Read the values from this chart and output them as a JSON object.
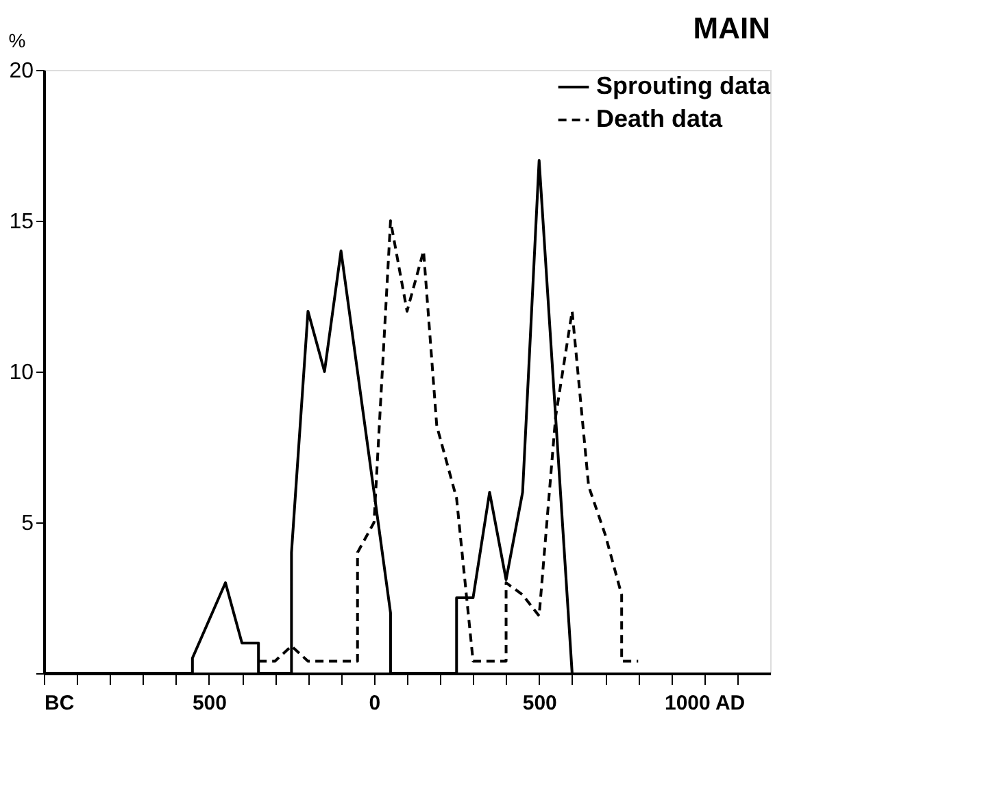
{
  "chart_data": {
    "type": "line",
    "title": "MAIN",
    "ylabel": "%",
    "xlim": [
      -1000,
      1200
    ],
    "xticks": [
      {
        "value": -1000,
        "label": "BC"
      },
      {
        "value": -900,
        "label": null
      },
      {
        "value": -800,
        "label": null
      },
      {
        "value": -700,
        "label": null
      },
      {
        "value": -600,
        "label": null
      },
      {
        "value": -500,
        "label": "500"
      },
      {
        "value": -400,
        "label": null
      },
      {
        "value": -300,
        "label": null
      },
      {
        "value": -200,
        "label": null
      },
      {
        "value": -100,
        "label": null
      },
      0,
      {
        "value": 100,
        "label": null
      },
      {
        "value": 200,
        "label": null
      },
      {
        "value": 300,
        "label": null
      },
      {
        "value": 400,
        "label": null
      },
      {
        "value": 500,
        "label": "500"
      },
      {
        "value": 600,
        "label": null
      },
      {
        "value": 700,
        "label": null
      },
      {
        "value": 800,
        "label": null
      },
      {
        "value": 900,
        "label": null
      },
      {
        "value": 1000,
        "label": "1000 AD"
      },
      {
        "value": 1100,
        "label": null
      }
    ],
    "ylim": [
      0,
      20
    ],
    "yticks": [
      {
        "value": 0,
        "label": null
      },
      5,
      10,
      15,
      20
    ],
    "grid": false,
    "legend": "top right",
    "marker": "none",
    "series": [
      {
        "name": "Sprouting data",
        "color": "#000000",
        "line_style": "solid",
        "x": [
          -1000,
          -550,
          -550,
          -450,
          -400,
          -350,
          -350,
          -250,
          -250,
          -250,
          -200,
          -150,
          -100,
          0,
          50,
          50,
          250,
          250,
          300,
          350,
          400,
          450,
          500,
          600
        ],
        "values": [
          0,
          0,
          0.5,
          3,
          1,
          1,
          0,
          0,
          4,
          4,
          12,
          10,
          14,
          6,
          2,
          0,
          0,
          2.5,
          2.5,
          6,
          3.1,
          6,
          17,
          0
        ]
      },
      {
        "name": "Death data",
        "color": "#000000",
        "line_style": "dashed",
        "x": [
          -350,
          -300,
          -250,
          -200,
          -50,
          -50,
          0,
          50,
          100,
          150,
          190,
          250,
          300,
          400,
          400,
          450,
          500,
          550,
          600,
          650,
          700,
          750,
          750,
          800
        ],
        "values": [
          0.4,
          0.4,
          0.9,
          0.4,
          0.4,
          4,
          5,
          15,
          12,
          14,
          8.2,
          5.8,
          0.4,
          0.4,
          3,
          2.6,
          1.9,
          8.5,
          12,
          6.2,
          4.6,
          2.6,
          0.4,
          0.4
        ]
      }
    ]
  }
}
